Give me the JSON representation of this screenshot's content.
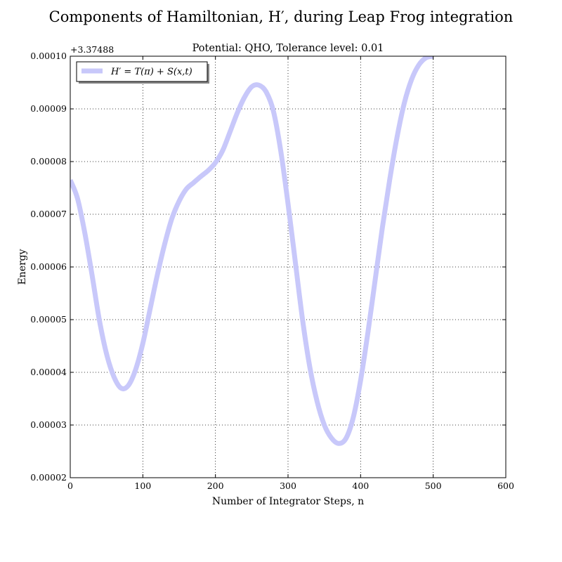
{
  "chart_data": {
    "type": "line",
    "title": "Components of Hamiltonian, H′, during Leap Frog integration",
    "subtitle": "Potential: QHO, Tolerance level: 0.01",
    "xlabel": "Number of Integrator Steps, n",
    "ylabel": "Energy",
    "offset_label": "+3.37488",
    "xlim": [
      0,
      600
    ],
    "ylim": [
      2e-05,
      0.0001
    ],
    "xticks": [
      "0",
      "100",
      "200",
      "300",
      "400",
      "500",
      "600"
    ],
    "yticks": [
      "0.00002",
      "0.00003",
      "0.00004",
      "0.00005",
      "0.00006",
      "0.00007",
      "0.00008",
      "0.00009",
      "0.00010"
    ],
    "grid": true,
    "legend_position": "top-left",
    "series": [
      {
        "name": "H′ = T(π) + S(x,t)",
        "color": "#c8c8fa",
        "x": [
          0,
          10,
          20,
          30,
          40,
          50,
          60,
          70,
          80,
          90,
          100,
          110,
          120,
          130,
          140,
          150,
          160,
          170,
          180,
          190,
          200,
          210,
          220,
          230,
          240,
          250,
          260,
          270,
          280,
          290,
          300,
          310,
          320,
          330,
          340,
          350,
          360,
          370,
          380,
          390,
          400,
          410,
          420,
          430,
          440,
          450,
          460,
          470,
          480,
          490,
          500
        ],
        "y": [
          7.65e-05,
          7.3e-05,
          6.65e-05,
          5.85e-05,
          5e-05,
          4.35e-05,
          3.92e-05,
          3.7e-05,
          3.75e-05,
          4.05e-05,
          4.55e-05,
          5.2e-05,
          5.85e-05,
          6.43e-05,
          6.92e-05,
          7.25e-05,
          7.48e-05,
          7.6e-05,
          7.72e-05,
          7.83e-05,
          7.98e-05,
          8.21e-05,
          8.56e-05,
          8.92e-05,
          9.22e-05,
          9.42e-05,
          9.45e-05,
          9.32e-05,
          8.95e-05,
          8.2e-05,
          7.2e-05,
          6.1e-05,
          5e-05,
          4.1e-05,
          3.45e-05,
          3e-05,
          2.75e-05,
          2.65e-05,
          2.75e-05,
          3.15e-05,
          3.85e-05,
          4.75e-05,
          5.75e-05,
          6.75e-05,
          7.65e-05,
          8.45e-05,
          9.1e-05,
          9.55e-05,
          9.83e-05,
          9.97e-05,
          0.0001
        ]
      }
    ]
  }
}
